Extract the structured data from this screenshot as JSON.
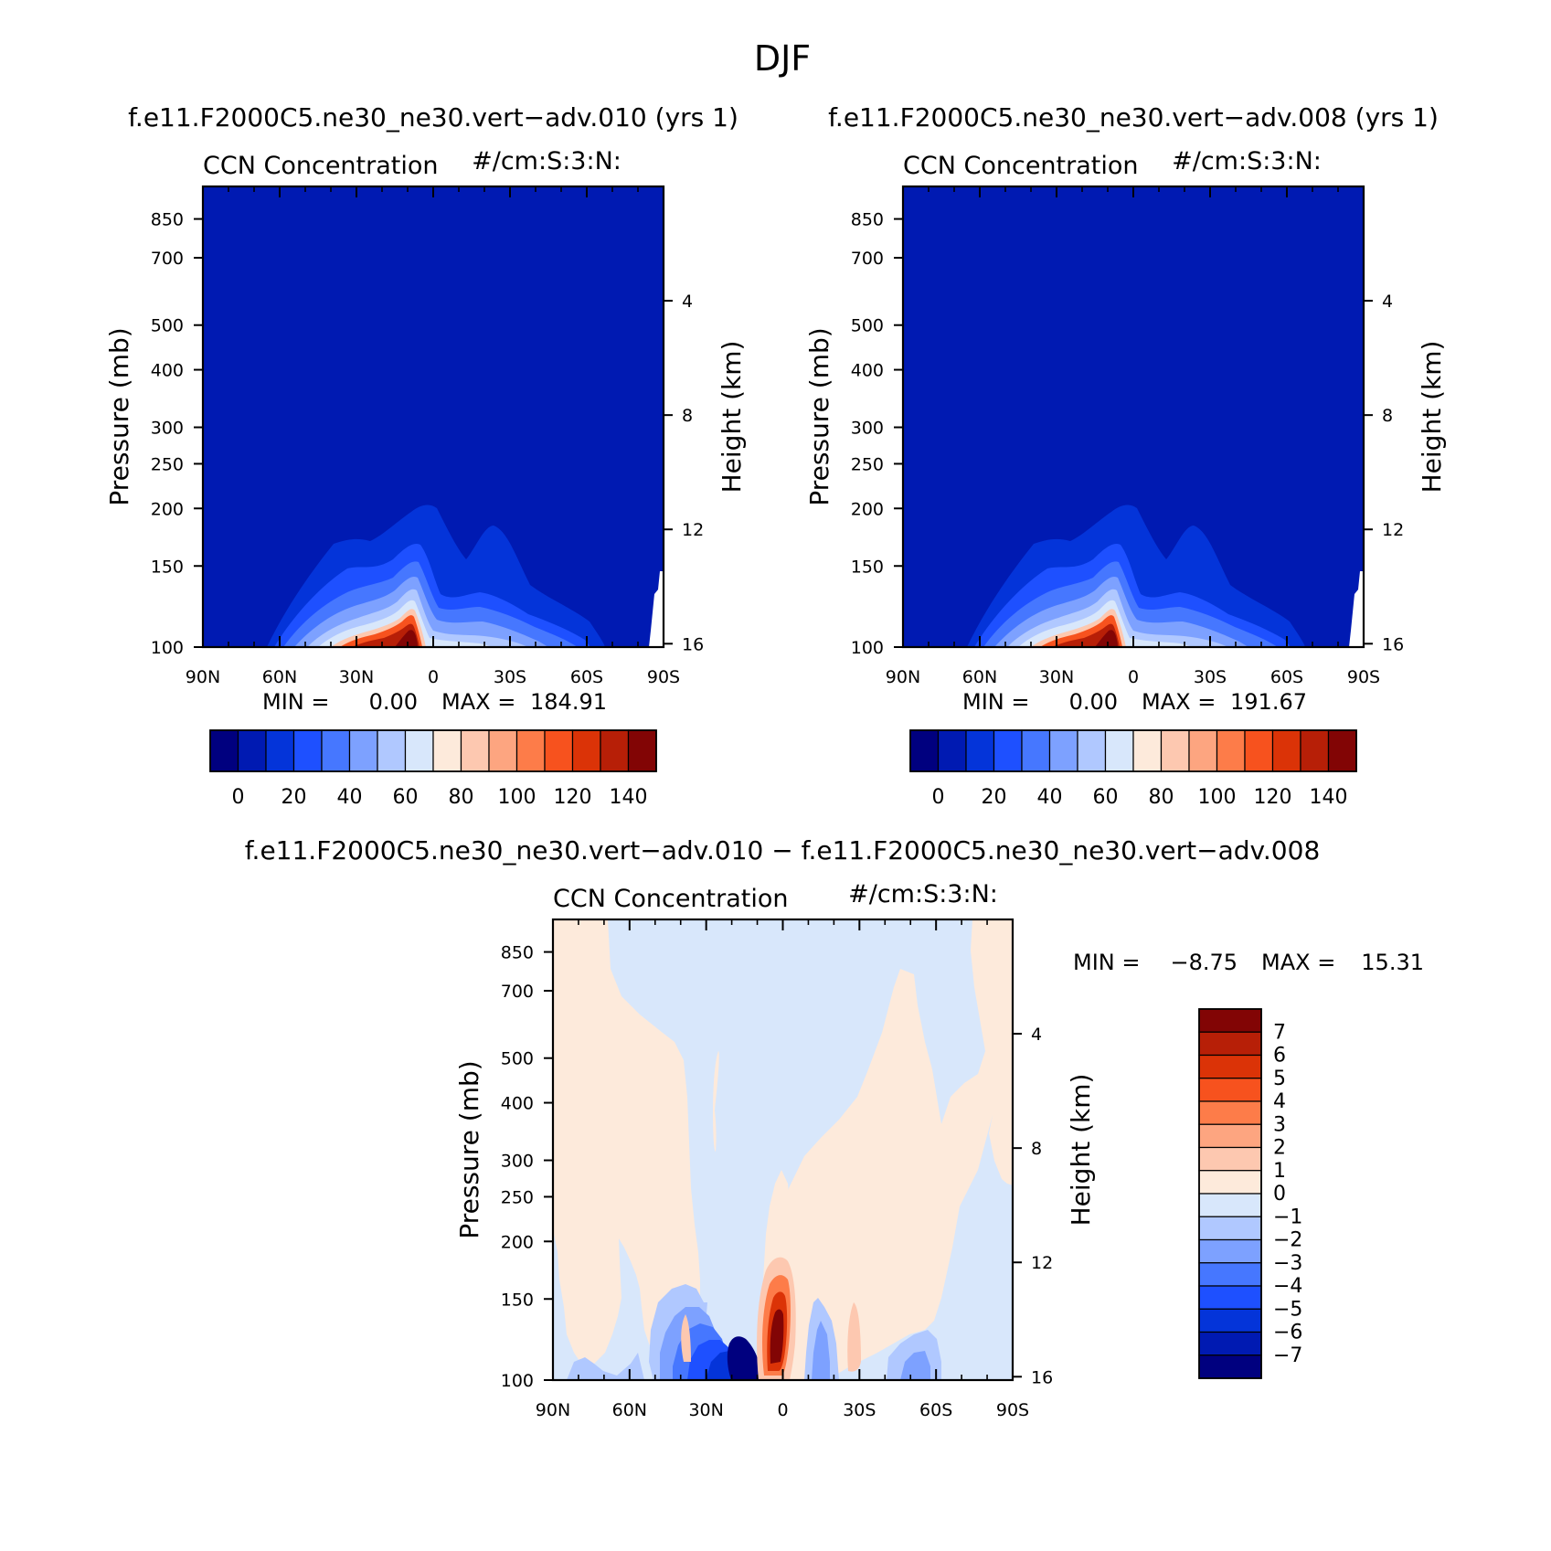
{
  "page_title": "DJF",
  "chart_data": [
    {
      "type": "heatmap",
      "header": "f.e11.F2000C5.ne30_ne30.vert−adv.010 (yrs 1)",
      "title": "CCN Concentration",
      "units": "#/cm:S:3:N:",
      "xlabel": "",
      "ylabel": "Pressure (mb)",
      "y2label": "Height (km)",
      "xticks": [
        "90N",
        "60N",
        "30N",
        "0",
        "30S",
        "60S",
        "90S"
      ],
      "yticks": [
        "100",
        "150",
        "200",
        "250",
        "300",
        "400",
        "500",
        "700",
        "850"
      ],
      "y2ticks": [
        "16",
        "12",
        "8",
        "4"
      ],
      "min_label": "MIN =",
      "min_value": "0.00",
      "max_label": "MAX =",
      "max_value": "184.91",
      "colorbar_labels": [
        "0",
        "20",
        "40",
        "60",
        "80",
        "100",
        "120",
        "140"
      ],
      "ylim": [
        1000,
        100
      ]
    },
    {
      "type": "heatmap",
      "header": "f.e11.F2000C5.ne30_ne30.vert−adv.008 (yrs 1)",
      "title": "CCN Concentration",
      "units": "#/cm:S:3:N:",
      "xlabel": "",
      "ylabel": "Pressure (mb)",
      "y2label": "Height (km)",
      "xticks": [
        "90N",
        "60N",
        "30N",
        "0",
        "30S",
        "60S",
        "90S"
      ],
      "yticks": [
        "100",
        "150",
        "200",
        "250",
        "300",
        "400",
        "500",
        "700",
        "850"
      ],
      "y2ticks": [
        "16",
        "12",
        "8",
        "4"
      ],
      "min_label": "MIN =",
      "min_value": "0.00",
      "max_label": "MAX =",
      "max_value": "191.67",
      "colorbar_labels": [
        "0",
        "20",
        "40",
        "60",
        "80",
        "100",
        "120",
        "140"
      ],
      "ylim": [
        1000,
        100
      ]
    },
    {
      "type": "heatmap",
      "header": "f.e11.F2000C5.ne30_ne30.vert−adv.010 − f.e11.F2000C5.ne30_ne30.vert−adv.008",
      "title": "CCN Concentration",
      "units": "#/cm:S:3:N:",
      "xlabel": "",
      "ylabel": "Pressure (mb)",
      "y2label": "Height (km)",
      "xticks": [
        "90N",
        "60N",
        "30N",
        "0",
        "30S",
        "60S",
        "90S"
      ],
      "yticks": [
        "100",
        "150",
        "200",
        "250",
        "300",
        "400",
        "500",
        "700",
        "850"
      ],
      "y2ticks": [
        "16",
        "12",
        "8",
        "4"
      ],
      "min_label": "MIN =",
      "min_value": "−8.75",
      "max_label": "MAX =",
      "max_value": "15.31",
      "colorbar_labels": [
        "7",
        "6",
        "5",
        "4",
        "3",
        "2",
        "1",
        "0",
        "−1",
        "−2",
        "−3",
        "−4",
        "−5",
        "−6",
        "−7"
      ],
      "ylim": [
        1000,
        100
      ]
    }
  ],
  "colors": {
    "abs_colorbar": [
      "#00007f",
      "#001ab2",
      "#0434d9",
      "#1e50ff",
      "#4677ff",
      "#7da1ff",
      "#b0c8ff",
      "#d8e7fb",
      "#fdeadb",
      "#fdc8b0",
      "#fda580",
      "#fd7c49",
      "#f7521e",
      "#db3307",
      "#b71f07",
      "#820505"
    ],
    "diff_colorbar": [
      "#820505",
      "#b71f07",
      "#db3307",
      "#f7521e",
      "#fd7c49",
      "#fda580",
      "#fdc8b0",
      "#fdeadb",
      "#d8e7fb",
      "#b0c8ff",
      "#7da1ff",
      "#4677ff",
      "#1e50ff",
      "#0434d9",
      "#001ab2",
      "#00007f"
    ]
  }
}
